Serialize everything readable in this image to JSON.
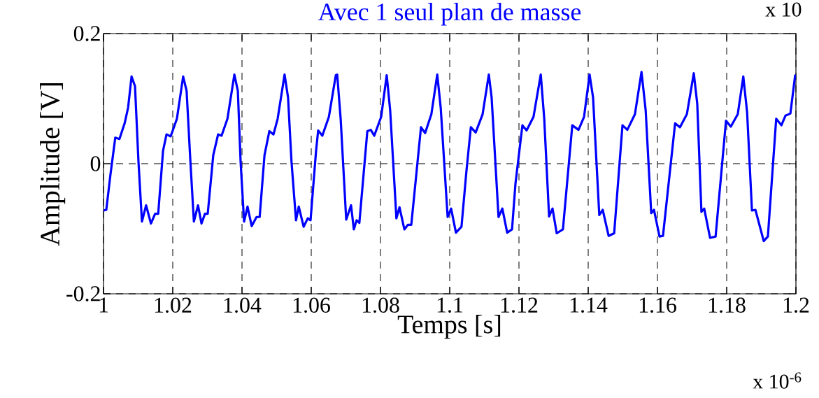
{
  "chart_data": {
    "type": "line",
    "title": "Avec 1 seul plan de masse",
    "xlabel": "Temps  [s]",
    "ylabel": "Amplitude  [V]",
    "annotations": [
      "x 10$^{-6}$",
      "x 10"
    ],
    "x": [
      1.0,
      1.0008,
      1.002,
      1.0034,
      1.0046,
      1.0061,
      1.0071,
      1.0081,
      1.0091,
      1.0101,
      1.0111,
      1.0123,
      1.0137,
      1.0149,
      1.0158,
      1.0172,
      1.0182,
      1.0194,
      1.0212,
      1.023,
      1.024,
      1.0251,
      1.0261,
      1.0273,
      1.0283,
      1.0293,
      1.0301,
      1.0317,
      1.0331,
      1.0341,
      1.0358,
      1.0378,
      1.0388,
      1.0396,
      1.0406,
      1.0416,
      1.0428,
      1.0442,
      1.0451,
      1.0465,
      1.0479,
      1.0491,
      1.0503,
      1.0523,
      1.0533,
      1.0543,
      1.0556,
      1.0564,
      1.0578,
      1.059,
      1.0598,
      1.0614,
      1.062,
      1.0632,
      1.0651,
      1.0671,
      1.0675,
      1.0685,
      1.0701,
      1.0715,
      1.0723,
      1.0731,
      1.0739,
      1.0762,
      1.0772,
      1.0782,
      1.0802,
      1.0818,
      1.0828,
      1.0846,
      1.0855,
      1.0869,
      1.0879,
      1.0889,
      1.0917,
      1.0929,
      1.0947,
      1.0964,
      1.0974,
      1.0994,
      1.1004,
      1.1018,
      1.1034,
      1.1048,
      1.1061,
      1.1075,
      1.1095,
      1.1113,
      1.1121,
      1.1141,
      1.1152,
      1.1166,
      1.118,
      1.119,
      1.121,
      1.1222,
      1.1242,
      1.1263,
      1.1273,
      1.1287,
      1.1297,
      1.1309,
      1.1327,
      1.1354,
      1.1372,
      1.1388,
      1.1404,
      1.1414,
      1.1432,
      1.1442,
      1.1459,
      1.1475,
      1.1499,
      1.1513,
      1.1535,
      1.1554,
      1.1566,
      1.1582,
      1.159,
      1.1606,
      1.1616,
      1.1651,
      1.1665,
      1.1685,
      1.1705,
      1.1715,
      1.1727,
      1.1735,
      1.1752,
      1.1768,
      1.1798,
      1.1812,
      1.1832,
      1.1848,
      1.1859,
      1.1873,
      1.1883,
      1.1907,
      1.1919,
      1.1943,
      1.1958,
      1.197,
      1.1984,
      1.1998
    ],
    "series": [
      {
        "color": "#0000ff",
        "values": [
          -0.072,
          -0.071,
          -0.017,
          0.04,
          0.038,
          0.062,
          0.086,
          0.134,
          0.119,
          0.003,
          -0.089,
          -0.064,
          -0.092,
          -0.077,
          -0.077,
          0.02,
          0.045,
          0.042,
          0.069,
          0.134,
          0.112,
          0.003,
          -0.089,
          -0.064,
          -0.092,
          -0.077,
          -0.077,
          0.013,
          0.045,
          0.043,
          0.069,
          0.137,
          0.112,
          0.003,
          -0.089,
          -0.066,
          -0.096,
          -0.082,
          -0.082,
          0.013,
          0.05,
          0.045,
          0.069,
          0.137,
          0.102,
          0.003,
          -0.087,
          -0.066,
          -0.097,
          -0.084,
          -0.087,
          0.02,
          0.051,
          0.043,
          0.072,
          0.136,
          0.137,
          0.069,
          -0.086,
          -0.064,
          -0.101,
          -0.087,
          -0.091,
          0.05,
          0.052,
          0.043,
          0.072,
          0.136,
          0.082,
          -0.084,
          -0.067,
          -0.101,
          -0.094,
          -0.094,
          0.056,
          0.047,
          0.076,
          0.137,
          0.086,
          -0.082,
          -0.069,
          -0.106,
          -0.097,
          -0.013,
          0.056,
          0.048,
          0.076,
          0.137,
          0.102,
          -0.082,
          -0.069,
          -0.106,
          -0.101,
          -0.03,
          0.059,
          0.051,
          0.072,
          0.137,
          0.069,
          -0.081,
          -0.069,
          -0.107,
          -0.101,
          0.059,
          0.052,
          0.072,
          0.137,
          0.102,
          -0.079,
          -0.071,
          -0.111,
          -0.107,
          0.059,
          0.052,
          0.076,
          0.141,
          0.082,
          -0.076,
          -0.071,
          -0.112,
          -0.111,
          0.062,
          0.056,
          0.076,
          0.139,
          0.092,
          -0.074,
          -0.069,
          -0.114,
          -0.112,
          0.066,
          0.057,
          0.076,
          0.134,
          0.079,
          -0.072,
          -0.071,
          -0.119,
          -0.112,
          0.069,
          0.059,
          0.074,
          0.077,
          0.137
        ]
      }
    ],
    "xlim": [
      1,
      1.2
    ],
    "ylim": [
      -0.2,
      0.2
    ],
    "xticks": [
      1,
      1.02,
      1.04,
      1.06,
      1.08,
      1.1,
      1.12,
      1.14,
      1.16,
      1.18,
      1.2
    ],
    "yticks": [
      -0.2,
      0,
      0.2
    ],
    "grid": true
  }
}
